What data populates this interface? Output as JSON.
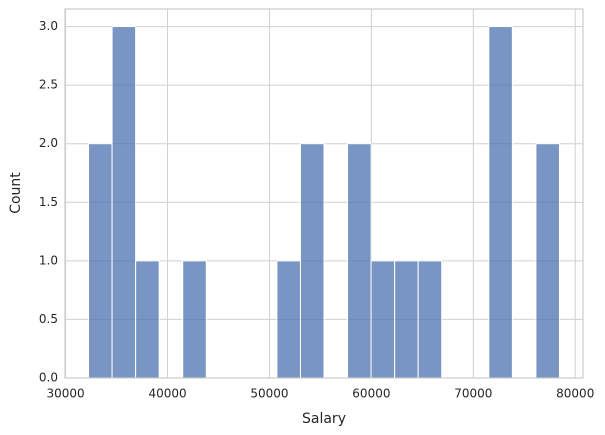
{
  "chart_data": {
    "type": "histogram",
    "x_label": "Salary",
    "y_label": "Count",
    "bins": [
      32250,
      34560,
      36870,
      39180,
      41490,
      43800,
      46110,
      48420,
      50730,
      53040,
      55350,
      57660,
      59970,
      62280,
      64590,
      66900,
      69210,
      71520,
      73830,
      76140,
      78450
    ],
    "values": [
      2,
      3,
      1,
      0,
      1,
      0,
      0,
      0,
      1,
      2,
      0,
      2,
      1,
      1,
      1,
      0,
      0,
      3,
      0,
      2
    ],
    "color": "#4c72b0",
    "xlim": [
      29940,
      80760
    ],
    "xticks": [
      30000,
      40000,
      50000,
      60000,
      70000,
      80000
    ],
    "ylim": [
      0,
      3.15
    ],
    "yticks": [
      {
        "value": 0,
        "label": "0.0"
      },
      {
        "value": 0.5,
        "label": "0.5"
      },
      {
        "value": 1,
        "label": "1.0"
      },
      {
        "value": 1.5,
        "label": "1.5"
      },
      {
        "value": 2,
        "label": "2.0"
      },
      {
        "value": 2.5,
        "label": "2.5"
      },
      {
        "value": 3,
        "label": "3.0"
      }
    ],
    "grid": true
  }
}
